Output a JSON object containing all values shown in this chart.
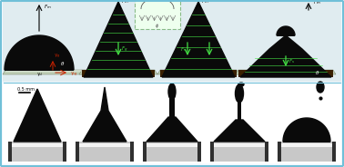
{
  "fig_bg": "#f5faff",
  "border_color": "#70c0d8",
  "top_bg": "#e0ecf0",
  "bottom_bg": "#ffffff",
  "droplet_black": "#0a0a0a",
  "plate_top": "#c8d8c0",
  "plate_side": "#889988",
  "plate_shine": "#e8f0e8",
  "green": "#44dd44",
  "red_arrow": "#cc2200",
  "inset_bg": "#eeffee",
  "inset_border": "#88bb88",
  "dark_base": "#3a2000",
  "panel_divider": "#70c0d8"
}
